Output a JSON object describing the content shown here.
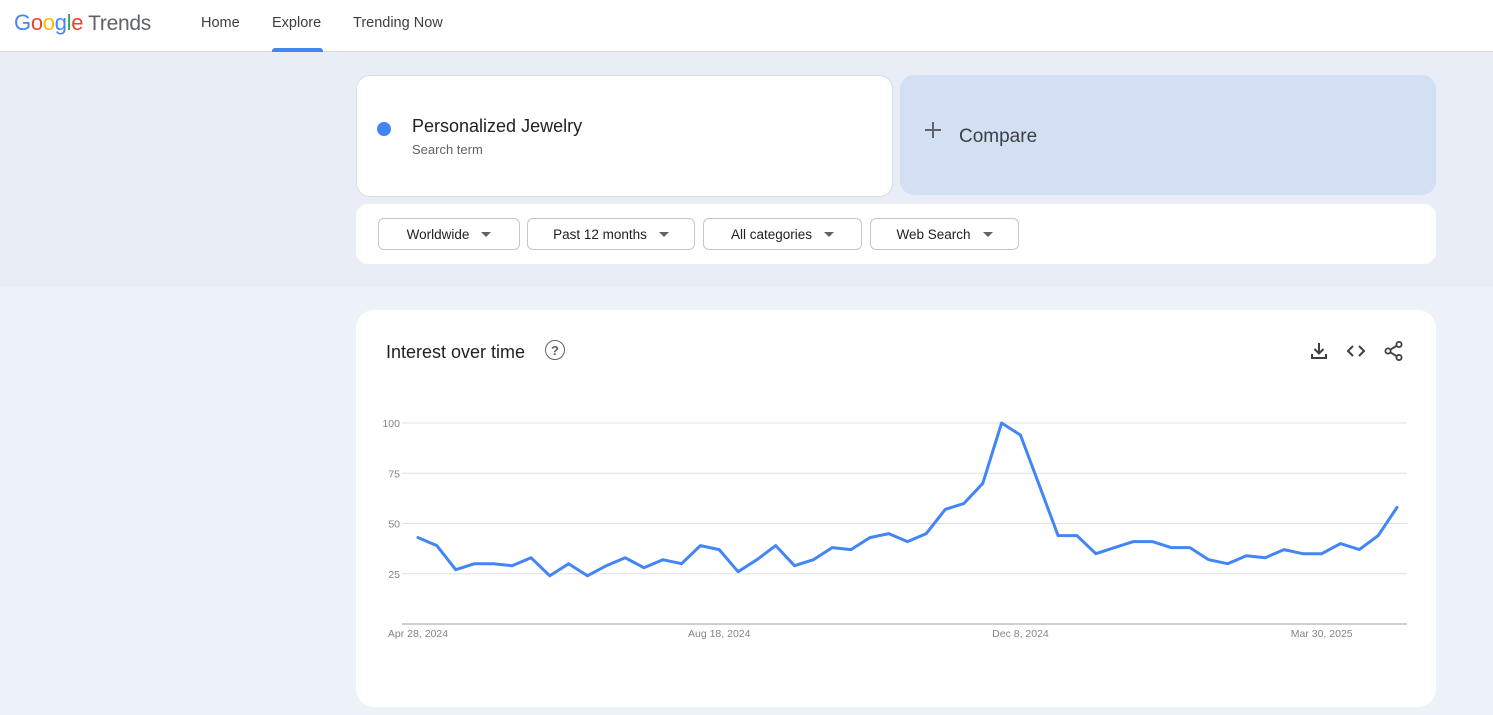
{
  "header": {
    "logo_google": "Google",
    "logo_trends": "Trends",
    "nav": [
      {
        "label": "Home",
        "active": false
      },
      {
        "label": "Explore",
        "active": true
      },
      {
        "label": "Trending Now",
        "active": false
      }
    ]
  },
  "search": {
    "term": "Personalized Jewelry",
    "term_type": "Search term",
    "term_color": "#4285f4",
    "compare_label": "Compare"
  },
  "filters": {
    "region": "Worldwide",
    "time": "Past 12 months",
    "category": "All categories",
    "search_type": "Web Search"
  },
  "interest": {
    "title": "Interest over time",
    "help_icon": "question-circle-icon",
    "actions": [
      "download-icon",
      "embed-code-icon",
      "share-icon"
    ]
  },
  "chart_data": {
    "type": "line",
    "x_start": "Apr 28, 2024",
    "x_labels": [
      {
        "index": 0,
        "label": "Apr 28, 2024"
      },
      {
        "index": 16,
        "label": "Aug 18, 2024"
      },
      {
        "index": 32,
        "label": "Dec 8, 2024"
      },
      {
        "index": 48,
        "label": "Mar 30, 2025"
      }
    ],
    "y_ticks": [
      25,
      50,
      75,
      100
    ],
    "ylim": [
      0,
      100
    ],
    "grid": true,
    "series": [
      {
        "name": "Personalized Jewelry",
        "color": "#4285f4",
        "values": [
          43,
          39,
          27,
          30,
          30,
          29,
          33,
          24,
          30,
          24,
          29,
          33,
          28,
          32,
          30,
          39,
          37,
          26,
          32,
          39,
          29,
          32,
          38,
          37,
          43,
          45,
          41,
          45,
          57,
          60,
          70,
          100,
          94,
          69,
          44,
          44,
          35,
          38,
          41,
          41,
          38,
          38,
          32,
          30,
          34,
          33,
          37,
          35,
          35,
          40,
          37,
          44,
          58
        ]
      }
    ]
  }
}
